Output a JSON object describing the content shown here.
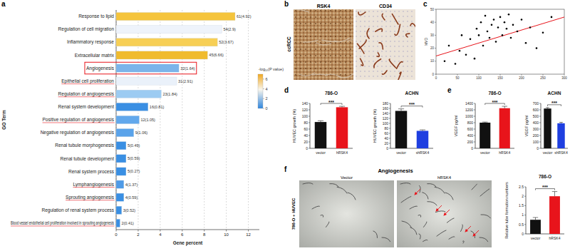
{
  "panel_labels": [
    "a",
    "b",
    "c",
    "d",
    "e",
    "f"
  ],
  "images": [
    {
      "row_label": "ccRCC",
      "titles": [
        "RSK4",
        "CD34"
      ]
    },
    {
      "title": "Angiogenesis",
      "side_label": "786-O + HUVEC",
      "titles": [
        "Vector",
        "hRSK4"
      ]
    }
  ],
  "chart_data": [
    {
      "type": "bar",
      "orientation": "horizontal",
      "x_label": "Gene percent",
      "y_label": "GO Term",
      "categories": [
        "Response to lipid",
        "Regulation of cell migration",
        "Inflammatory response",
        "Extracellular matrix",
        "Angiogenesis",
        "Epithelial cell proliferation",
        "Regulation of angiogenesis",
        "Renal system development",
        "Positive regulation of angiogenesis",
        "Negative regulation of angiogenesis",
        "Renal tubule morphogenesis",
        "Renal tubule development",
        "Renal system process",
        "Lymphangiogenesis",
        "Sprouting angiogenesis",
        "Regulation of renal system process",
        "Blood vessel endothelial cell proliferation involved in sprouting angiogenesis"
      ],
      "values": [
        10.8,
        9.6,
        9.2,
        8.3,
        5.7,
        5.5,
        4.1,
        2.9,
        2.1,
        1.6,
        0.9,
        0.9,
        0.9,
        0.7,
        0.7,
        0.5,
        0.35
      ],
      "bar_annotations": [
        "61(4.92)",
        "54(2.9)",
        "52(3.67)",
        "45(6.66)",
        "32(1.64)",
        "31(2.91)",
        "23(1.84)",
        "16(0.81)",
        "12(1.05)",
        "9(1.06)",
        "5(0.49)",
        "5(0.59)",
        "5(0.27)",
        "4(1.37)",
        "4(0.59)",
        "3(0.52)",
        "2(0.41)"
      ],
      "colors": [
        "#f5c43c",
        "#eef3fb",
        "#f7cf55",
        "#f0bb2e",
        "#7bb4ea",
        "#eaf1fa",
        "#9ccbf2",
        "#3a8fe3",
        "#62a8ec",
        "#5aa3ea",
        "#3a8fe3",
        "#3a8fe3",
        "#3a8fe3",
        "#4f9be7",
        "#3a8fe3",
        "#3a8fe3",
        "#3a8fe3"
      ],
      "xlim": [
        0,
        13
      ],
      "xticks": [
        0,
        2,
        4,
        6,
        8,
        10,
        12
      ],
      "grid": true,
      "colorbar": {
        "title": "-log₁₀(P value)",
        "range": [
          0,
          7
        ],
        "ticks": [
          0,
          2,
          4,
          6
        ]
      },
      "boxed": [
        4
      ],
      "underlined": [
        5,
        6,
        8,
        13,
        14,
        16
      ]
    },
    {
      "type": "scatter",
      "y_label": "MVD",
      "color": "#000000",
      "x": [
        20,
        30,
        45,
        55,
        60,
        70,
        80,
        90,
        95,
        100,
        105,
        110,
        115,
        120,
        125,
        130,
        135,
        140,
        145,
        150,
        155,
        160,
        165,
        170,
        175,
        180,
        190,
        200,
        210,
        220,
        235,
        250,
        270
      ],
      "y": [
        10,
        22,
        8,
        18,
        30,
        15,
        27,
        12,
        35,
        30,
        40,
        22,
        45,
        33,
        28,
        38,
        42,
        25,
        36,
        44,
        30,
        40,
        35,
        46,
        28,
        38,
        33,
        42,
        24,
        36,
        20,
        32,
        44
      ],
      "xlim": [
        0,
        300
      ],
      "xticks": [
        0,
        50,
        100,
        150,
        200,
        250,
        300
      ],
      "ylim": [
        0,
        50
      ],
      "yticks": [
        0,
        10,
        20,
        30,
        40,
        50
      ],
      "trend_line": {
        "x": [
          0,
          300
        ],
        "y": [
          14,
          44
        ],
        "color": "#e8141b"
      }
    },
    {
      "type": "bar",
      "title": "786-O",
      "y_label": "HUVEC growth (%)",
      "categories": [
        "vector",
        "hRSK4"
      ],
      "values": [
        82,
        128
      ],
      "errors": [
        4,
        3
      ],
      "colors": [
        "#111111",
        "#e8141b"
      ],
      "ylim": [
        0,
        140
      ],
      "yticks": [
        0,
        20,
        40,
        60,
        80,
        100,
        120,
        140
      ],
      "significance": "***"
    },
    {
      "type": "bar",
      "title": "ACHN",
      "y_label": "HUVEC growth (%)",
      "categories": [
        "vector",
        "shRSK4"
      ],
      "values": [
        150,
        70
      ],
      "errors": [
        8,
        4
      ],
      "colors": [
        "#111111",
        "#1f3fe0"
      ],
      "ylim": [
        0,
        180
      ],
      "yticks": [
        0,
        20,
        40,
        60,
        80,
        100,
        120,
        140,
        160,
        180
      ],
      "significance": "***"
    },
    {
      "type": "bar",
      "title": "786-O",
      "y_label": "VEGF pg/ml",
      "categories": [
        "vector",
        "hRSK4"
      ],
      "values": [
        800,
        1250
      ],
      "errors": [
        20,
        60
      ],
      "colors": [
        "#111111",
        "#e8141b"
      ],
      "ylim": [
        0,
        1400
      ],
      "yticks": [
        0,
        200,
        400,
        600,
        800,
        1000,
        1200,
        1400
      ],
      "significance": "***"
    },
    {
      "type": "bar",
      "title": "ACHN",
      "y_label": "VEGF pg/ml",
      "categories": [
        "vector",
        "shRSK4"
      ],
      "values": [
        620,
        390
      ],
      "errors": [
        15,
        15
      ],
      "colors": [
        "#111111",
        "#1f3fe0"
      ],
      "ylim": [
        0,
        700
      ],
      "yticks": [
        0,
        100,
        200,
        300,
        400,
        500,
        600,
        700
      ],
      "significance": "***"
    },
    {
      "type": "bar",
      "title": "786-O",
      "y_label": "Relative tube formation numbers",
      "categories": [
        "vector",
        "hRSK4"
      ],
      "values": [
        0.75,
        2.0
      ],
      "errors": [
        0.12,
        0.25
      ],
      "colors": [
        "#111111",
        "#e8141b"
      ],
      "ylim": [
        0,
        2.5
      ],
      "yticks": [
        0,
        0.5,
        1,
        1.5,
        2,
        2.5
      ],
      "significance": "***"
    }
  ]
}
